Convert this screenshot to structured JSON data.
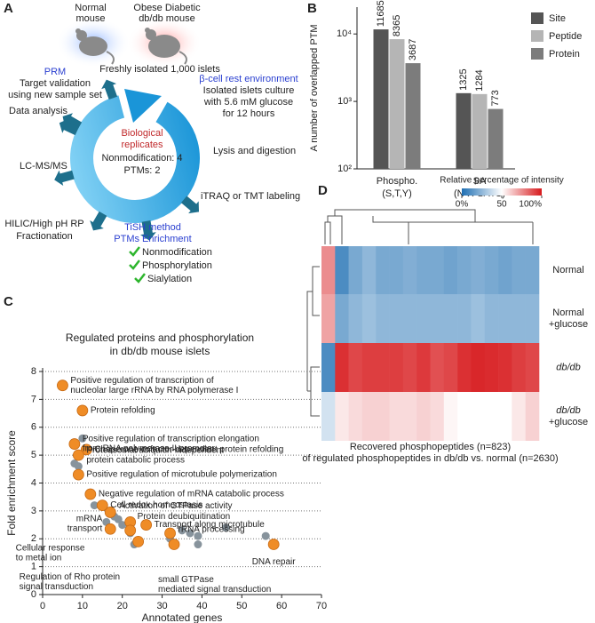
{
  "panel_labels": {
    "a": "A",
    "b": "B",
    "c": "C",
    "d": "D"
  },
  "workflow": {
    "normal_mouse": [
      "Normal",
      "mouse"
    ],
    "obese_mouse": [
      "Obese Diabetic",
      "db/db mouse"
    ],
    "isolation": "Freshly isolated 1,000 islets",
    "center": {
      "title": [
        "Biological",
        "replicates"
      ],
      "lines": [
        "Nonmodification: 4",
        "PTMs: 2"
      ]
    },
    "prm": {
      "title": "PRM",
      "lines": [
        "Target validation",
        "using new sample set"
      ]
    },
    "rest": {
      "title": "β-cell rest environment",
      "lines": [
        "Isolated islets culture",
        "with 5.6 mM glucose",
        "for 12 hours"
      ]
    },
    "steps": {
      "data_analysis": "Data analysis",
      "lysis": "Lysis and digestion",
      "lcms": "LC-MS/MS",
      "labeling": "iTRAQ or TMT labeling",
      "fractionation": [
        "HILIC/High pH RP",
        "Fractionation"
      ]
    },
    "tish": {
      "title": [
        "TiSH method",
        "PTMs Enrichment"
      ],
      "items": [
        "Nonmodification",
        "Phosphorylation",
        "Sialylation"
      ]
    }
  },
  "chart_data": [
    {
      "type": "bar",
      "log_scale": true,
      "ylabel": "A number of overlapped PTM",
      "categories": [
        "Phospho.",
        "SA"
      ],
      "category_sublabels": [
        "(S,T,Y)",
        "(N-X-S/T/C)"
      ],
      "series": [
        {
          "name": "Site",
          "color": "#555555",
          "values": [
            11685,
            1325
          ]
        },
        {
          "name": "Peptide",
          "color": "#b5b5b5",
          "values": [
            8365,
            1284
          ]
        },
        {
          "name": "Protein",
          "color": "#7c7c7c",
          "values": [
            3687,
            773
          ]
        }
      ],
      "ylim": [
        100,
        25000
      ],
      "yticks": [
        {
          "value": 100,
          "label": "10²"
        },
        {
          "value": 1000,
          "label": "10³"
        },
        {
          "value": 10000,
          "label": "10⁴"
        }
      ],
      "legend": "right"
    },
    {
      "type": "scatter",
      "title": [
        "Regulated proteins and phosphorylation",
        "in db/db mouse islets"
      ],
      "xlabel": "Annotated genes",
      "ylabel": "Fold enrichment score",
      "xlim": [
        0,
        70
      ],
      "xticks": [
        0,
        10,
        20,
        30,
        40,
        50,
        60,
        70
      ],
      "ylim": [
        0,
        8
      ],
      "yticks": [
        0,
        1,
        2,
        3,
        4,
        5,
        6,
        7,
        8
      ],
      "grid": true,
      "series": [
        {
          "color": "#87939c",
          "x": [
            10,
            8,
            9,
            13,
            19,
            18,
            16,
            20,
            22,
            23,
            32,
            35,
            37,
            39,
            46,
            56,
            39
          ],
          "values": [
            5.6,
            4.7,
            4.6,
            3.2,
            2.7,
            2.8,
            2.6,
            2.5,
            2.2,
            1.8,
            2.0,
            2.3,
            2.2,
            2.1,
            2.4,
            2.1,
            1.8
          ]
        },
        {
          "color": "#ef8c26",
          "x": [
            5,
            10,
            8,
            11,
            9,
            9,
            12,
            15,
            17,
            22,
            26,
            17,
            22,
            24,
            32,
            33,
            58
          ],
          "values": [
            7.5,
            6.6,
            5.4,
            5.2,
            5.0,
            4.3,
            3.6,
            3.2,
            2.95,
            2.6,
            2.5,
            2.35,
            2.3,
            1.9,
            2.2,
            1.8,
            1.8
          ],
          "labels": [
            [
              "Positive regulation of transcription of",
              "nucleolar large rRNA by RNA polymerase I"
            ],
            [
              "Protein refolding"
            ],
            [
              "Positive regulation of transcription elongation",
              "from RNA polymerase II promoter"
            ],
            [
              "Chaperone cofactor-dependent protein refolding"
            ],
            [
              "Proteasomal ubiquitin-independent",
              "protein catabolic process"
            ],
            [
              "Positive regulation of microtubule polymerization"
            ],
            [
              "Negative regulation of mRNA catabolic process"
            ],
            [
              "Cell redox homeostasis"
            ],
            [
              "Activation of GTPase activity"
            ],
            [
              "Protein deubiquitination"
            ],
            [
              "Transport along microtubule"
            ],
            [
              "mRNA",
              "transport"
            ],
            [
              "Cellular response",
              "to metal ion"
            ],
            [
              "Regulation of Rho protein",
              "signal transduction"
            ],
            [
              "rRNA processing"
            ],
            [
              "small GTPase",
              "mediated signal transduction"
            ],
            [
              "DNA repair"
            ]
          ],
          "label_colors": [
            "#2a4fc0",
            "#e0581a",
            "#2a4fc0",
            "#e0581a",
            "#d4287c",
            "#d4287c",
            "#2a4fc0",
            "#e0581a",
            "#333333",
            "#d4287c",
            "#d4287c",
            "#2a4fc0",
            "#333333",
            "#333333",
            "#2a4fc0",
            "#333333",
            "#2a4fc0"
          ]
        }
      ]
    },
    {
      "type": "heatmap",
      "legend_title": "Relative percentage of intensity",
      "clim": [
        0,
        100
      ],
      "cticks": [
        {
          "value": 0,
          "label": "0%"
        },
        50,
        {
          "value": 100,
          "label": "100%"
        }
      ],
      "colors": [
        "#1f6fb3",
        "#ffffff",
        "#d7191c"
      ],
      "rows": [
        [
          "Normal"
        ],
        [
          "Normal",
          "+glucose"
        ],
        [
          "db/db"
        ],
        [
          "db/db",
          "+glucose"
        ]
      ],
      "values": [
        [
          75,
          10,
          20,
          25,
          20,
          20,
          22,
          20,
          20,
          18,
          20,
          22,
          20,
          18,
          20,
          20
        ],
        [
          70,
          20,
          25,
          28,
          25,
          25,
          25,
          25,
          25,
          25,
          25,
          28,
          25,
          25,
          25,
          25
        ],
        [
          10,
          95,
          90,
          92,
          92,
          92,
          90,
          93,
          88,
          90,
          95,
          97,
          96,
          95,
          92,
          90
        ],
        [
          40,
          55,
          58,
          60,
          60,
          58,
          58,
          60,
          58,
          52,
          50,
          50,
          50,
          50,
          55,
          60
        ]
      ],
      "caption": [
        "Recovered phosphopeptides (n=823)",
        "of regulated phosphopeptides in db/db vs. normal (n=2630)"
      ]
    }
  ]
}
